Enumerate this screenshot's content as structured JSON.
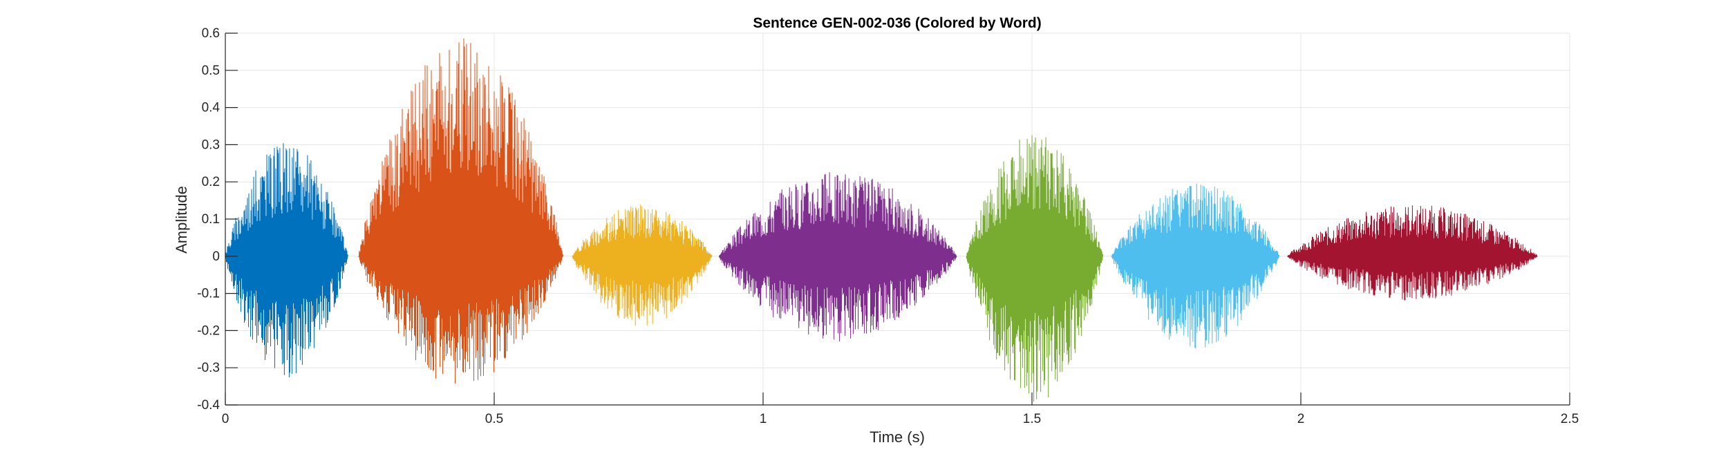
{
  "chart_data": {
    "type": "line",
    "title": "Sentence GEN-002-036 (Colored by Word)",
    "xlabel": "Time (s)",
    "ylabel": "Amplitude",
    "xlim": [
      0,
      2.5
    ],
    "ylim": [
      -0.4,
      0.6
    ],
    "xticks": [
      0,
      0.5,
      1,
      1.5,
      2,
      2.5
    ],
    "xtick_labels": [
      "0",
      "0.5",
      "1",
      "1.5",
      "2",
      "2.5"
    ],
    "yticks": [
      -0.4,
      -0.3,
      -0.2,
      -0.1,
      0,
      0.1,
      0.2,
      0.3,
      0.4,
      0.5,
      0.6
    ],
    "ytick_labels": [
      "-0.4",
      "-0.3",
      "-0.2",
      "-0.1",
      "0",
      "0.1",
      "0.2",
      "0.3",
      "0.4",
      "0.5",
      "0.6"
    ],
    "grid": true,
    "legend": "none",
    "series": [
      {
        "start": 0.0,
        "end": 0.228,
        "peak_max": 0.31,
        "peak_min": -0.33,
        "color": "#0072BD"
      },
      {
        "start": 0.248,
        "end": 0.628,
        "peak_max": 0.59,
        "peak_min": -0.35,
        "color": "#D95319"
      },
      {
        "start": 0.645,
        "end": 0.905,
        "peak_max": 0.14,
        "peak_min": -0.19,
        "color": "#EDB120"
      },
      {
        "start": 0.918,
        "end": 1.36,
        "peak_max": 0.23,
        "peak_min": -0.23,
        "color": "#7E2F8E"
      },
      {
        "start": 1.378,
        "end": 1.632,
        "peak_max": 0.33,
        "peak_min": -0.4,
        "color": "#77AC30"
      },
      {
        "start": 1.648,
        "end": 1.96,
        "peak_max": 0.2,
        "peak_min": -0.25,
        "color": "#4DBEEE"
      },
      {
        "start": 1.975,
        "end": 2.44,
        "peak_max": 0.14,
        "peak_min": -0.12,
        "color": "#A2142F"
      }
    ]
  }
}
